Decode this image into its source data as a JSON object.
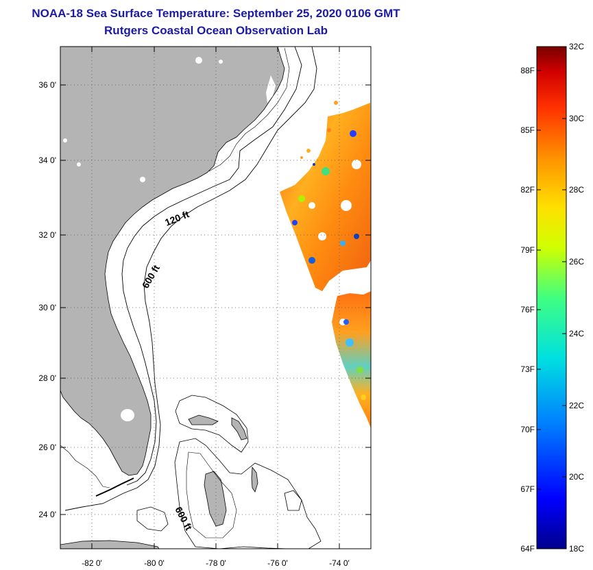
{
  "title": {
    "line1": "NOAA-18 Sea Surface Temperature:  September 25, 2020 0106 GMT",
    "line2": "Rutgers Coastal Ocean Observation Lab"
  },
  "map": {
    "y_ticks": [
      "36 0'",
      "34 0'",
      "32 0'",
      "30 0'",
      "28 0'",
      "26 0'",
      "24 0'"
    ],
    "x_ticks": [
      "-82 0'",
      "-80 0'",
      "-78 0'",
      "-76 0'",
      "-74 0'"
    ],
    "contour_labels": {
      "c120": "120 ft",
      "c600a": "600 ft",
      "c600b": "600 ft"
    },
    "colors": {
      "land": "#b4b4b4",
      "frame": "#000000",
      "grid": "#555555"
    }
  },
  "colorbar": {
    "f_labels": [
      "88F",
      "85F",
      "82F",
      "79F",
      "76F",
      "73F",
      "70F",
      "67F",
      "64F"
    ],
    "c_labels": [
      "32C",
      "30C",
      "28C",
      "26C",
      "24C",
      "22C",
      "20C",
      "18C"
    ],
    "range_c": [
      18,
      32
    ],
    "stops": [
      "#00008c",
      "#0000ff",
      "#0080ff",
      "#00e0e0",
      "#40ff80",
      "#d0ff00",
      "#ffe000",
      "#ff9000",
      "#ff3000",
      "#d00000",
      "#780000"
    ]
  }
}
